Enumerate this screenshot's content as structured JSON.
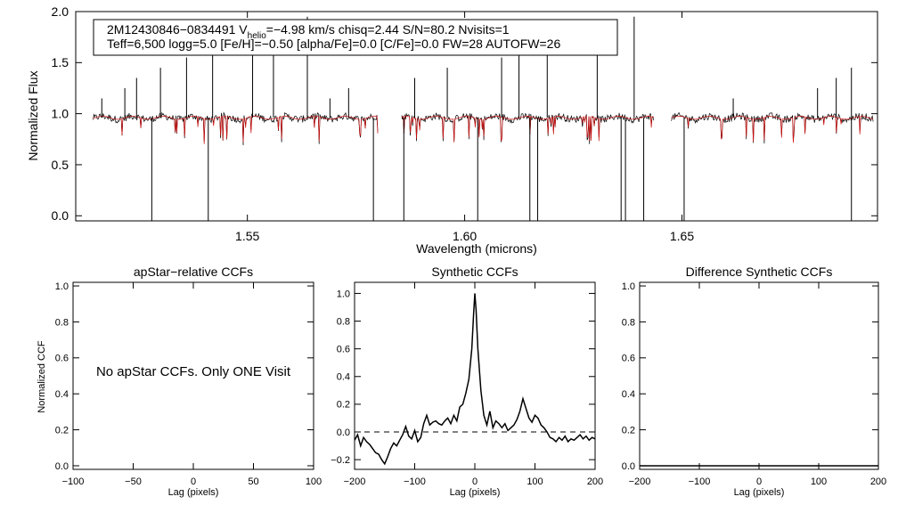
{
  "chart_data": [
    {
      "type": "line",
      "id": "spectrum",
      "info_line1": "2M12430846−0834491  V",
      "info_sub": "helio",
      "info_line1b": "=−4.98 km/s  chisq=2.44  S/N=80.2  Nvisits=1",
      "info_line2": "Teff=6,500 logg=5.0 [Fe/H]=−0.50 [alpha/Fe]=0.0 [C/Fe]=0.0 FW=28 AUTOFW=26",
      "xlabel": "Wavelength (microns)",
      "ylabel": "Normalized Flux",
      "xlim": [
        1.5105,
        1.695
      ],
      "ylim": [
        -0.05,
        2.0
      ],
      "xticks": [
        "1.55",
        "1.60",
        "1.65"
      ],
      "yticks": [
        "0.0",
        "0.5",
        "1.0",
        "1.5",
        "2.0"
      ],
      "chips": [
        [
          1.5145,
          1.58
        ],
        [
          1.5855,
          1.6435
        ],
        [
          1.6475,
          1.694
        ]
      ],
      "emission_spikes": [
        1.5165,
        1.5218,
        1.5245,
        1.53,
        1.536,
        1.542,
        1.5512,
        1.556,
        1.5638,
        1.569,
        1.5733,
        1.5885,
        1.596,
        1.6085,
        1.6125,
        1.619,
        1.6305,
        1.639,
        1.6618,
        1.6812,
        1.6855,
        1.689
      ],
      "absorption_spikes": [
        1.528,
        1.541,
        1.579,
        1.586,
        1.603,
        1.615,
        1.6168,
        1.636,
        1.637,
        1.6412,
        1.6505,
        1.689
      ],
      "series": [
        {
          "name": "observed",
          "color": "#000000"
        },
        {
          "name": "model",
          "color": "#d01010"
        }
      ]
    },
    {
      "type": "line",
      "id": "apstar-ccf",
      "title": "apStar−relative CCFs",
      "xlabel": "Lag (pixels)",
      "ylabel": "Normalized CCF",
      "xlim": [
        -100,
        100
      ],
      "ylim": [
        -0.02,
        1.02
      ],
      "xticks": [
        "−100",
        "−50",
        "0",
        "50",
        "100"
      ],
      "yticks": [
        "0.0",
        "0.2",
        "0.4",
        "0.6",
        "0.8",
        "1.0"
      ],
      "annotation": "No apStar CCFs.  Only ONE Visit"
    },
    {
      "type": "line",
      "id": "synthetic-ccf",
      "title": "Synthetic CCFs",
      "xlabel": "Lag (pixels)",
      "xlim": [
        -200,
        200
      ],
      "ylim": [
        -0.27,
        1.08
      ],
      "xticks": [
        "−200",
        "−100",
        "0",
        "100",
        "200"
      ],
      "yticks": [
        "−0.2",
        "0.0",
        "0.2",
        "0.4",
        "0.6",
        "0.8",
        "1.0"
      ],
      "x": [
        -200,
        -195,
        -190,
        -185,
        -180,
        -175,
        -170,
        -165,
        -160,
        -155,
        -150,
        -145,
        -140,
        -135,
        -130,
        -125,
        -120,
        -115,
        -110,
        -105,
        -100,
        -95,
        -90,
        -85,
        -80,
        -75,
        -70,
        -65,
        -60,
        -55,
        -50,
        -45,
        -40,
        -35,
        -30,
        -25,
        -20,
        -15,
        -10,
        -5,
        -2,
        0,
        2,
        5,
        10,
        15,
        20,
        25,
        30,
        35,
        40,
        45,
        50,
        55,
        60,
        65,
        70,
        75,
        80,
        85,
        90,
        95,
        100,
        105,
        110,
        115,
        120,
        125,
        130,
        135,
        140,
        145,
        150,
        155,
        160,
        165,
        170,
        175,
        180,
        185,
        190,
        195,
        200
      ],
      "y": [
        -0.06,
        -0.02,
        -0.1,
        -0.04,
        -0.07,
        -0.09,
        -0.12,
        -0.15,
        -0.16,
        -0.2,
        -0.23,
        -0.18,
        -0.12,
        -0.08,
        -0.1,
        -0.06,
        -0.02,
        0.04,
        -0.03,
        -0.05,
        0.01,
        -0.07,
        -0.04,
        0.06,
        0.12,
        0.05,
        0.07,
        0.08,
        0.06,
        0.05,
        0.08,
        0.1,
        0.06,
        0.12,
        0.08,
        0.18,
        0.2,
        0.28,
        0.38,
        0.6,
        0.85,
        1.0,
        0.88,
        0.6,
        0.3,
        0.12,
        0.05,
        0.15,
        0.03,
        0.08,
        0.06,
        0.03,
        0.06,
        0.01,
        0.03,
        0.05,
        0.09,
        0.15,
        0.24,
        0.17,
        0.1,
        0.07,
        0.12,
        0.1,
        0.05,
        0.03,
        0.0,
        -0.04,
        -0.05,
        -0.07,
        -0.04,
        -0.06,
        -0.03,
        -0.07,
        -0.05,
        -0.06,
        -0.04,
        -0.02,
        -0.05,
        -0.03,
        -0.06,
        -0.04,
        -0.05
      ],
      "zero_line": 0.0
    },
    {
      "type": "line",
      "id": "difference-ccf",
      "title": "Difference Synthetic CCFs",
      "xlabel": "Lag (pixels)",
      "xlim": [
        -200,
        200
      ],
      "ylim": [
        -0.02,
        1.02
      ],
      "xticks": [
        "−200",
        "−100",
        "0",
        "100",
        "200"
      ],
      "yticks": [
        "0.0",
        "0.2",
        "0.4",
        "0.6",
        "0.8",
        "1.0"
      ],
      "x": [
        -200,
        200
      ],
      "y": [
        0.0,
        0.0
      ]
    }
  ]
}
